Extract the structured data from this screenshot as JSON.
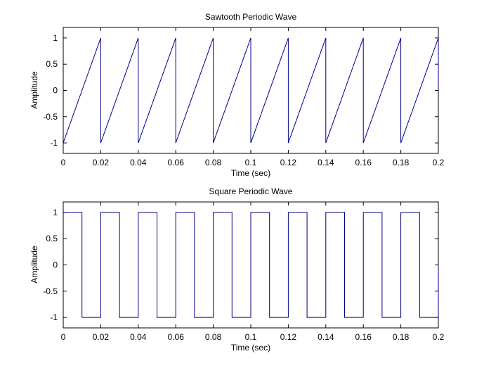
{
  "figure": {
    "background": "#ffffff",
    "axes_color": "#000000",
    "line_color": "#00008b"
  },
  "chart_data": [
    {
      "type": "line",
      "title": "Sawtooth Periodic Wave",
      "xlabel": "Time (sec)",
      "ylabel": "Amplitude",
      "xlim": [
        0,
        0.2
      ],
      "ylim": [
        -1.2,
        1.2
      ],
      "grid": false,
      "xticks": [
        0,
        0.02,
        0.04,
        0.06,
        0.08,
        0.1,
        0.12,
        0.14,
        0.16,
        0.18,
        0.2
      ],
      "xticklabels": [
        "0",
        "0.02",
        "0.04",
        "0.06",
        "0.08",
        "0.1",
        "0.12",
        "0.14",
        "0.16",
        "0.18",
        "0.2"
      ],
      "yticks": [
        -1,
        -0.5,
        0,
        0.5,
        1
      ],
      "yticklabels": [
        "-1",
        "-0.5",
        "0",
        "0.5",
        "1"
      ],
      "series": [
        {
          "color": "#00008b",
          "x": [
            0,
            0.02,
            0.02,
            0.04,
            0.04,
            0.06,
            0.06,
            0.08,
            0.08,
            0.1,
            0.1,
            0.12,
            0.12,
            0.14,
            0.14,
            0.16,
            0.16,
            0.18,
            0.18,
            0.2,
            0.2
          ],
          "y": [
            -1,
            1,
            -1,
            1,
            -1,
            1,
            -1,
            1,
            -1,
            1,
            -1,
            1,
            -1,
            1,
            -1,
            1,
            -1,
            1,
            -1,
            1,
            0
          ]
        }
      ]
    },
    {
      "type": "line",
      "title": "Square Periodic Wave",
      "xlabel": "Time (sec)",
      "ylabel": "Amplitude",
      "xlim": [
        0,
        0.2
      ],
      "ylim": [
        -1.2,
        1.2
      ],
      "grid": false,
      "xticks": [
        0,
        0.02,
        0.04,
        0.06,
        0.08,
        0.1,
        0.12,
        0.14,
        0.16,
        0.18,
        0.2
      ],
      "xticklabels": [
        "0",
        "0.02",
        "0.04",
        "0.06",
        "0.08",
        "0.1",
        "0.12",
        "0.14",
        "0.16",
        "0.18",
        "0.2"
      ],
      "yticks": [
        -1,
        -0.5,
        0,
        0.5,
        1
      ],
      "yticklabels": [
        "-1",
        "-0.5",
        "0",
        "0.5",
        "1"
      ],
      "series": [
        {
          "color": "#00008b",
          "x": [
            0,
            0.01,
            0.01,
            0.02,
            0.02,
            0.03,
            0.03,
            0.04,
            0.04,
            0.05,
            0.05,
            0.06,
            0.06,
            0.07,
            0.07,
            0.08,
            0.08,
            0.09,
            0.09,
            0.1,
            0.1,
            0.11,
            0.11,
            0.12,
            0.12,
            0.13,
            0.13,
            0.14,
            0.14,
            0.15,
            0.15,
            0.16,
            0.16,
            0.17,
            0.17,
            0.18,
            0.18,
            0.19,
            0.19,
            0.2,
            0.2
          ],
          "y": [
            1,
            1,
            -1,
            -1,
            1,
            1,
            -1,
            -1,
            1,
            1,
            -1,
            -1,
            1,
            1,
            -1,
            -1,
            1,
            1,
            -1,
            -1,
            1,
            1,
            -1,
            -1,
            1,
            1,
            -1,
            -1,
            1,
            1,
            -1,
            -1,
            1,
            1,
            -1,
            -1,
            1,
            1,
            -1,
            -1,
            0
          ]
        }
      ]
    }
  ]
}
